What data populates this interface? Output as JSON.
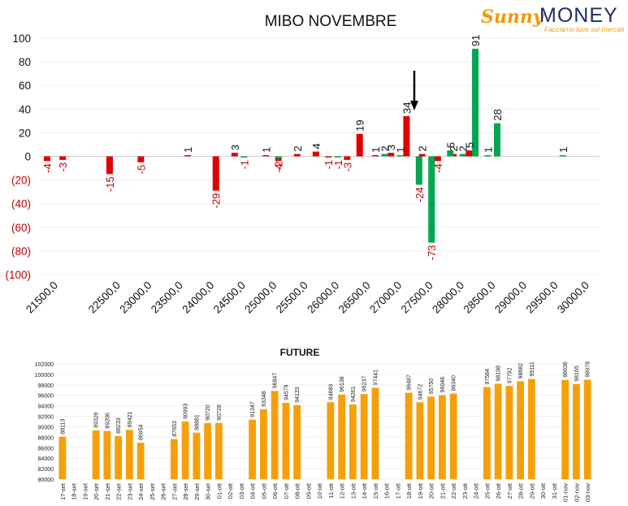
{
  "logo": {
    "brand_part1": "Sunny",
    "brand_part2": "MONEY",
    "tagline": "Facciamo luce sui mercati"
  },
  "colors": {
    "positive": "#e10000",
    "negative": "#00a651",
    "future": "#f5a00a",
    "arrow": "#000000"
  },
  "chart_data": [
    {
      "type": "bar",
      "title": "MIBO NOVEMBRE",
      "ylim": [
        -100,
        100
      ],
      "yticks": [
        "100",
        "80",
        "60",
        "40",
        "20",
        "0",
        "(20)",
        "(40)",
        "(60)",
        "(80)",
        "(100)"
      ],
      "xticks": [
        "21500,0",
        "22500,0",
        "23000,0",
        "23500,0",
        "24000,0",
        "24500,0",
        "25000,0",
        "25500,0",
        "26000,0",
        "26500,0",
        "27000,0",
        "27500,0",
        "28000,0",
        "28500,0",
        "29000,0",
        "29500,0",
        "30000,0"
      ],
      "series": [
        {
          "color": "red",
          "values": [
            [
              -4,
              "-4",
              21500
            ],
            [
              -3,
              "-3",
              21750
            ],
            [
              -15,
              "-15",
              22500
            ],
            [
              -5,
              "-5",
              23000
            ],
            [
              1,
              "1",
              23750
            ],
            [
              -29,
              "-29",
              24200
            ],
            [
              3,
              "3",
              24500
            ],
            [
              1,
              "1",
              25000
            ],
            [
              -4,
              "-4",
              25200
            ],
            [
              2,
              "2",
              25500
            ],
            [
              4,
              "4",
              25800
            ],
            [
              -1,
              "-1",
              26000
            ],
            [
              -3,
              "-3",
              26300
            ],
            [
              19,
              "19",
              26500
            ],
            [
              1,
              "1",
              26750
            ],
            [
              3,
              "3",
              27000
            ],
            [
              34,
              "34",
              27250
            ],
            [
              2,
              "2",
              27500
            ],
            [
              -4,
              "-4",
              27750
            ],
            [
              2,
              "2",
              28000
            ],
            [
              5,
              "5",
              28250
            ]
          ]
        },
        {
          "color": "green",
          "values": [
            [
              -1,
              "-1",
              24650
            ],
            [
              -2,
              "-2",
              25200
            ],
            [
              -1,
              "-1",
              26150
            ],
            [
              2,
              "2",
              26900
            ],
            [
              1,
              "1",
              27150
            ],
            [
              -24,
              "-24",
              27450
            ],
            [
              -73,
              "-73",
              27650
            ],
            [
              5,
              "5",
              27950
            ],
            [
              2,
              "2",
              28150
            ],
            [
              91,
              "91",
              28350
            ],
            [
              1,
              "1",
              28550
            ],
            [
              28,
              "28",
              28700
            ],
            [
              1,
              "1",
              29750
            ]
          ]
        }
      ],
      "annotation": {
        "type": "arrow-down",
        "x": 27400
      }
    },
    {
      "type": "bar",
      "title": "FUTURE",
      "ylim": [
        80000,
        102000
      ],
      "yticks": [
        "102000",
        "100000",
        "98000",
        "96000",
        "94000",
        "92000",
        "90000",
        "88000",
        "86000",
        "84000",
        "82000",
        "80000"
      ],
      "categories": [
        "17-set",
        "18-set",
        "19-set",
        "20-set",
        "21-set",
        "22-set",
        "23-set",
        "24-set",
        "25-set",
        "26-set",
        "27-set",
        "28-set",
        "29-set",
        "30-set",
        "01-ott",
        "02-ott",
        "03-ott",
        "04-ott",
        "05-ott",
        "06-ott",
        "07-ott",
        "08-ott",
        "09-ott",
        "10-ott",
        "11-ott",
        "12-ott",
        "13-ott",
        "14-ott",
        "15-ott",
        "16-ott",
        "17-ott",
        "18-ott",
        "19-ott",
        "20-ott",
        "21-ott",
        "22-ott",
        "23-ott",
        "24-ott",
        "25-ott",
        "26-ott",
        "27-ott",
        "28-ott",
        "29-ott",
        "30-ott",
        "31-ott",
        "01-nov",
        "02-nov",
        "03-nov"
      ],
      "values": [
        88113,
        null,
        null,
        89326,
        89206,
        88233,
        89421,
        86954,
        null,
        null,
        87653,
        90993,
        88881,
        90720,
        90728,
        null,
        null,
        91347,
        93348,
        96847,
        94579,
        94133,
        null,
        null,
        94689,
        96138,
        94261,
        96237,
        97441,
        null,
        null,
        96487,
        94672,
        95750,
        96048,
        96340,
        null,
        null,
        97584,
        98198,
        97792,
        98682,
        99111,
        null,
        null,
        98936,
        98165,
        98978
      ]
    }
  ]
}
